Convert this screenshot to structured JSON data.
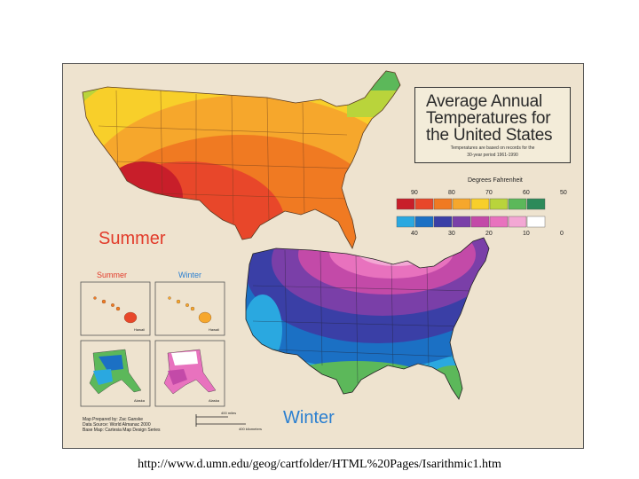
{
  "title": {
    "line1": "Average Annual",
    "line2": "Temperatures for",
    "line3": "the United States",
    "note_line1": "Temperatures are based on records for the",
    "note_line2": "30-year period 1961-1990"
  },
  "legend": {
    "heading": "Degrees Fahrenheit",
    "summer_ticks": [
      "90",
      "80",
      "70",
      "60",
      "50"
    ],
    "winter_ticks": [
      "40",
      "30",
      "20",
      "10",
      "0"
    ],
    "summer_colors": [
      "#c81e2a",
      "#e8472a",
      "#f07a22",
      "#f6a72c",
      "#f8cf2a",
      "#b9d43b",
      "#5cb85a",
      "#2d8a5a"
    ],
    "winter_colors": [
      "#2aa8e0",
      "#1b70c4",
      "#3a3fa6",
      "#7a3fa8",
      "#c34aa8",
      "#e872be",
      "#f3a7d4",
      "#ffffff"
    ]
  },
  "labels": {
    "summer": "Summer",
    "winter": "Winter",
    "inset_summer": "Summer",
    "inset_winter": "Winter",
    "hawaii": "Hawaii",
    "alaska": "Alaska"
  },
  "credits": {
    "line1": "Map Prepared by: Zac Ganske",
    "line2": "Data Source: World Almanac 2000",
    "line3": "Base Map: Cartesia Map Design Series"
  },
  "scale": {
    "miles": "400 miles",
    "km": "400 kilometers"
  },
  "caption": "http://www.d.umn.edu/geog/cartfolder/HTML%20Pages/Isarithmic1.htm",
  "colors": {
    "summer_label": "#e23b2a",
    "winter_label": "#2a7fd0",
    "background": "#eee3cf"
  }
}
